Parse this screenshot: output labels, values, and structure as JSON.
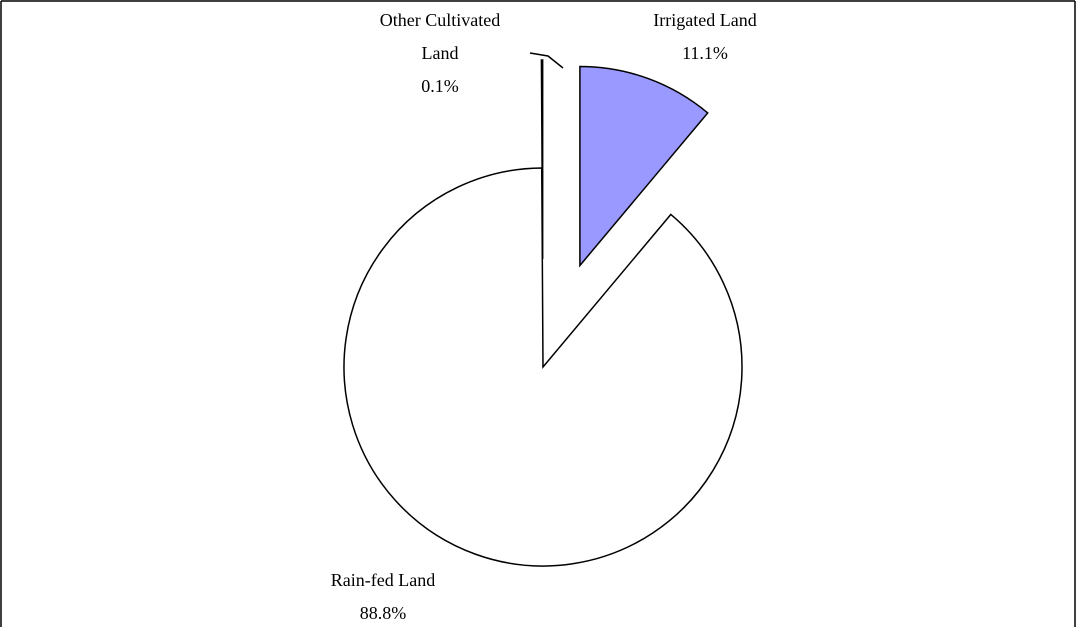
{
  "chart_data": {
    "type": "pie",
    "categories": [
      "Irrigated Land",
      "Rain-fed Land",
      "Other Cultivated Land"
    ],
    "values": [
      11.1,
      88.8,
      0.1
    ],
    "value_labels": [
      "11.1%",
      "88.8%",
      "0.1%"
    ],
    "colors": [
      "#9999ff",
      "#ffffff",
      "#ffffff"
    ]
  }
}
